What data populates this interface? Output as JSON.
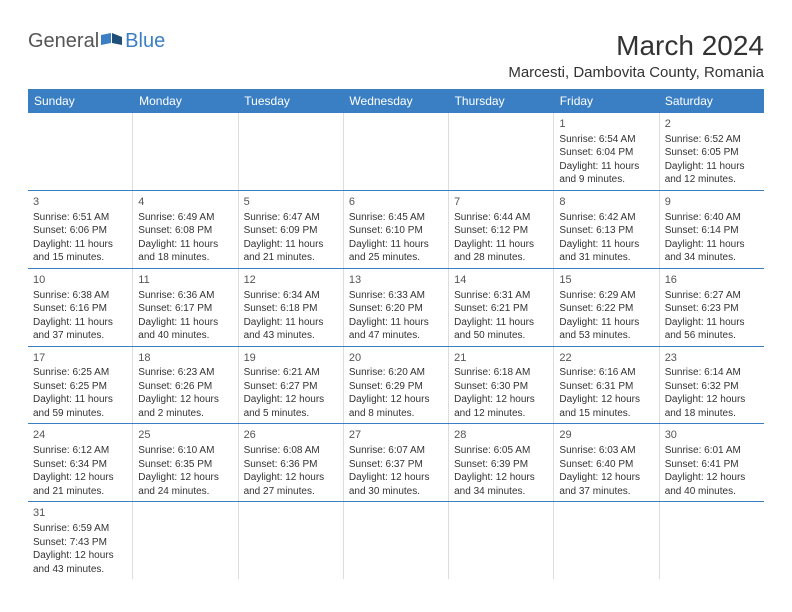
{
  "logo": {
    "general": "General",
    "blue": "Blue"
  },
  "title": "March 2024",
  "location": "Marcesti, Dambovita County, Romania",
  "colors": {
    "header_bg": "#3a7fc4",
    "header_text": "#ffffff",
    "border": "#3a7fc4",
    "cell_border": "#dddddd",
    "text": "#333333",
    "logo_gray": "#555555",
    "logo_blue": "#3a7fc4"
  },
  "day_labels": [
    "Sunday",
    "Monday",
    "Tuesday",
    "Wednesday",
    "Thursday",
    "Friday",
    "Saturday"
  ],
  "weeks": [
    [
      null,
      null,
      null,
      null,
      null,
      {
        "n": "1",
        "sr": "6:54 AM",
        "ss": "6:04 PM",
        "dl": "11 hours and 9 minutes."
      },
      {
        "n": "2",
        "sr": "6:52 AM",
        "ss": "6:05 PM",
        "dl": "11 hours and 12 minutes."
      }
    ],
    [
      {
        "n": "3",
        "sr": "6:51 AM",
        "ss": "6:06 PM",
        "dl": "11 hours and 15 minutes."
      },
      {
        "n": "4",
        "sr": "6:49 AM",
        "ss": "6:08 PM",
        "dl": "11 hours and 18 minutes."
      },
      {
        "n": "5",
        "sr": "6:47 AM",
        "ss": "6:09 PM",
        "dl": "11 hours and 21 minutes."
      },
      {
        "n": "6",
        "sr": "6:45 AM",
        "ss": "6:10 PM",
        "dl": "11 hours and 25 minutes."
      },
      {
        "n": "7",
        "sr": "6:44 AM",
        "ss": "6:12 PM",
        "dl": "11 hours and 28 minutes."
      },
      {
        "n": "8",
        "sr": "6:42 AM",
        "ss": "6:13 PM",
        "dl": "11 hours and 31 minutes."
      },
      {
        "n": "9",
        "sr": "6:40 AM",
        "ss": "6:14 PM",
        "dl": "11 hours and 34 minutes."
      }
    ],
    [
      {
        "n": "10",
        "sr": "6:38 AM",
        "ss": "6:16 PM",
        "dl": "11 hours and 37 minutes."
      },
      {
        "n": "11",
        "sr": "6:36 AM",
        "ss": "6:17 PM",
        "dl": "11 hours and 40 minutes."
      },
      {
        "n": "12",
        "sr": "6:34 AM",
        "ss": "6:18 PM",
        "dl": "11 hours and 43 minutes."
      },
      {
        "n": "13",
        "sr": "6:33 AM",
        "ss": "6:20 PM",
        "dl": "11 hours and 47 minutes."
      },
      {
        "n": "14",
        "sr": "6:31 AM",
        "ss": "6:21 PM",
        "dl": "11 hours and 50 minutes."
      },
      {
        "n": "15",
        "sr": "6:29 AM",
        "ss": "6:22 PM",
        "dl": "11 hours and 53 minutes."
      },
      {
        "n": "16",
        "sr": "6:27 AM",
        "ss": "6:23 PM",
        "dl": "11 hours and 56 minutes."
      }
    ],
    [
      {
        "n": "17",
        "sr": "6:25 AM",
        "ss": "6:25 PM",
        "dl": "11 hours and 59 minutes."
      },
      {
        "n": "18",
        "sr": "6:23 AM",
        "ss": "6:26 PM",
        "dl": "12 hours and 2 minutes."
      },
      {
        "n": "19",
        "sr": "6:21 AM",
        "ss": "6:27 PM",
        "dl": "12 hours and 5 minutes."
      },
      {
        "n": "20",
        "sr": "6:20 AM",
        "ss": "6:29 PM",
        "dl": "12 hours and 8 minutes."
      },
      {
        "n": "21",
        "sr": "6:18 AM",
        "ss": "6:30 PM",
        "dl": "12 hours and 12 minutes."
      },
      {
        "n": "22",
        "sr": "6:16 AM",
        "ss": "6:31 PM",
        "dl": "12 hours and 15 minutes."
      },
      {
        "n": "23",
        "sr": "6:14 AM",
        "ss": "6:32 PM",
        "dl": "12 hours and 18 minutes."
      }
    ],
    [
      {
        "n": "24",
        "sr": "6:12 AM",
        "ss": "6:34 PM",
        "dl": "12 hours and 21 minutes."
      },
      {
        "n": "25",
        "sr": "6:10 AM",
        "ss": "6:35 PM",
        "dl": "12 hours and 24 minutes."
      },
      {
        "n": "26",
        "sr": "6:08 AM",
        "ss": "6:36 PM",
        "dl": "12 hours and 27 minutes."
      },
      {
        "n": "27",
        "sr": "6:07 AM",
        "ss": "6:37 PM",
        "dl": "12 hours and 30 minutes."
      },
      {
        "n": "28",
        "sr": "6:05 AM",
        "ss": "6:39 PM",
        "dl": "12 hours and 34 minutes."
      },
      {
        "n": "29",
        "sr": "6:03 AM",
        "ss": "6:40 PM",
        "dl": "12 hours and 37 minutes."
      },
      {
        "n": "30",
        "sr": "6:01 AM",
        "ss": "6:41 PM",
        "dl": "12 hours and 40 minutes."
      }
    ],
    [
      {
        "n": "31",
        "sr": "6:59 AM",
        "ss": "7:43 PM",
        "dl": "12 hours and 43 minutes."
      },
      null,
      null,
      null,
      null,
      null,
      null
    ]
  ],
  "labels": {
    "sunrise": "Sunrise: ",
    "sunset": "Sunset: ",
    "daylight": "Daylight: "
  }
}
